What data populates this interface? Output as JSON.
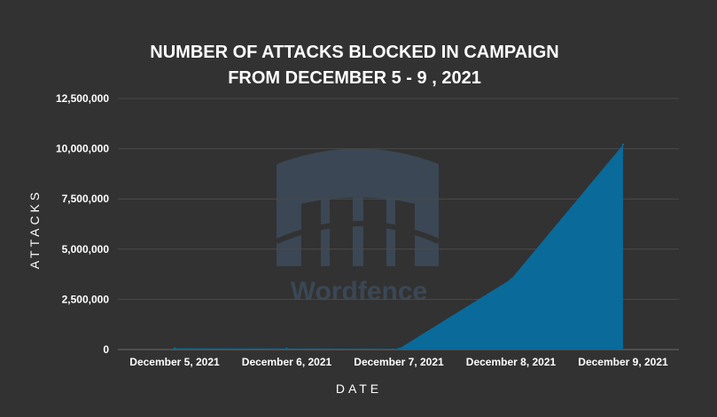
{
  "chart_data": {
    "type": "area",
    "title_lines": [
      "NUMBER OF ATTACKS BLOCKED IN CAMPAIGN",
      "FROM DECEMBER 5 - 9 , 2021"
    ],
    "xlabel": "DATE",
    "ylabel": "ATTACKS",
    "categories": [
      "December 5, 2021",
      "December 6, 2021",
      "December 7, 2021",
      "December 8, 2021",
      "December 9, 2021"
    ],
    "series": [
      {
        "values": [
          60000,
          50000,
          40000,
          3500000,
          10200000
        ]
      }
    ],
    "ylim": [
      0,
      12500000
    ],
    "yticks": [
      0,
      2500000,
      5000000,
      7500000,
      10000000,
      12500000
    ],
    "ytick_labels": [
      "0",
      "2,500,000",
      "5,000,000",
      "7,500,000",
      "10,000,000",
      "12,500,000"
    ],
    "grid": true,
    "legend": "none",
    "colors": {
      "background": "#323232",
      "area": "#0a6a9a",
      "grid": "#4a4a4a",
      "text": "#ffffff"
    }
  },
  "watermark": {
    "text": "Wordfence",
    "icon": "wordfence-fence-icon"
  }
}
